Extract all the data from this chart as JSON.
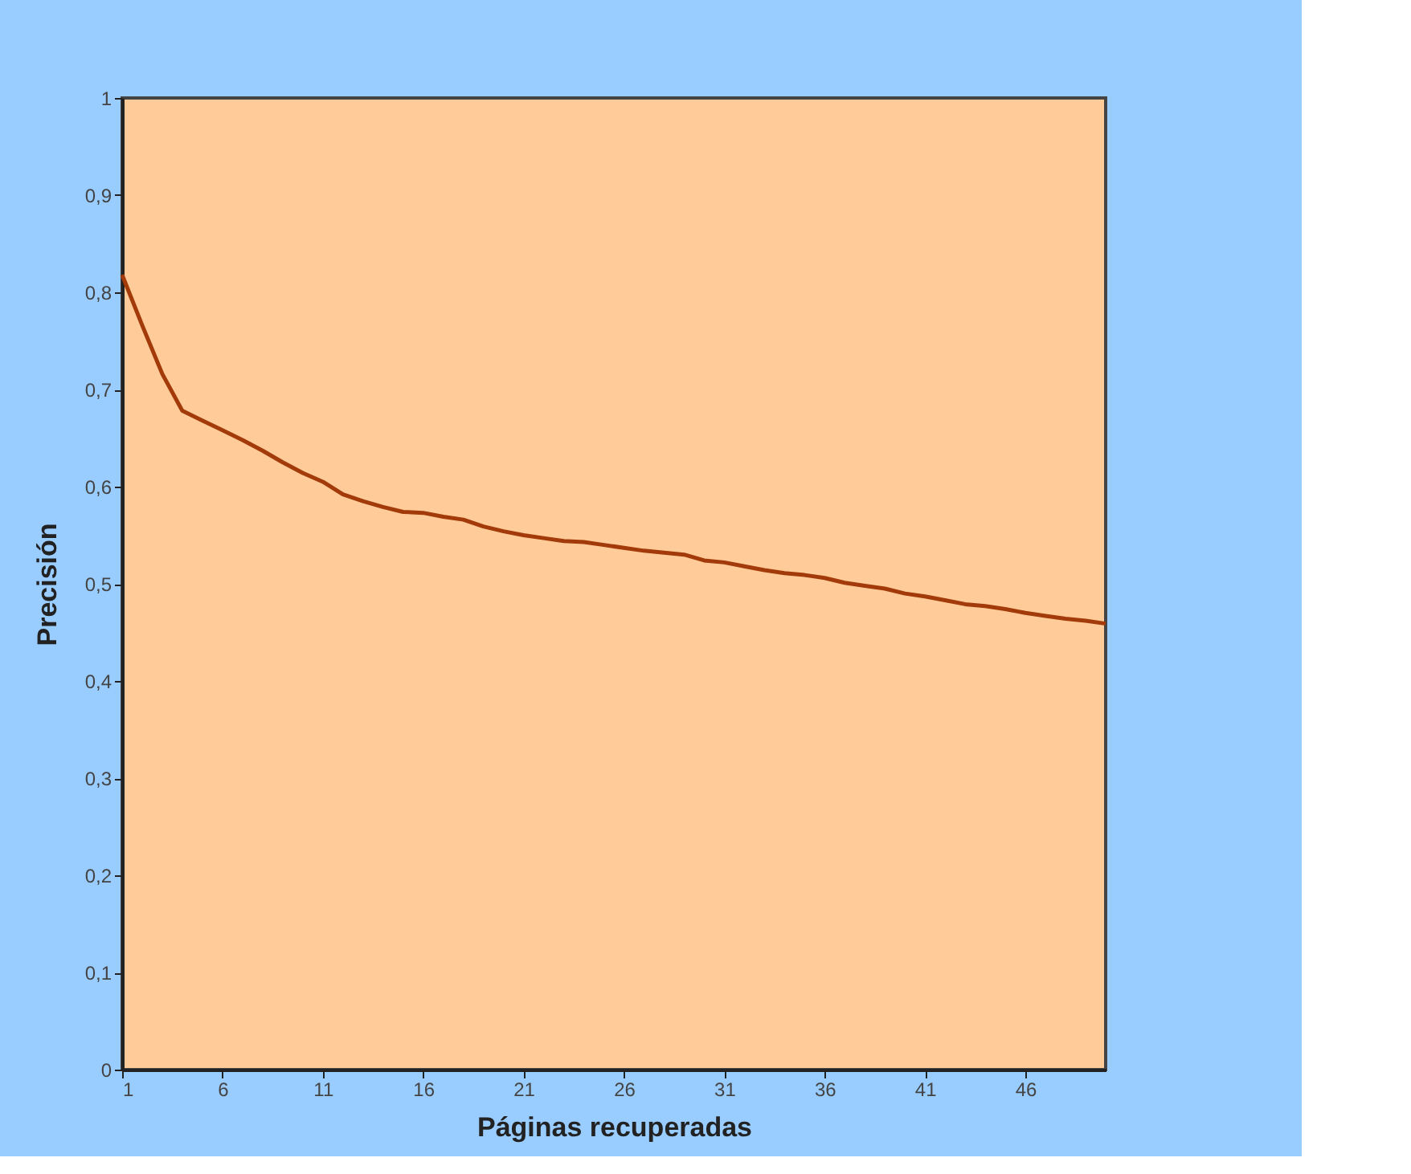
{
  "chart_data": {
    "type": "line",
    "xlabel": "Páginas recuperadas",
    "ylabel": "Precisión",
    "x": [
      1,
      2,
      3,
      4,
      5,
      6,
      7,
      8,
      9,
      10,
      11,
      12,
      13,
      14,
      15,
      16,
      17,
      18,
      19,
      20,
      21,
      22,
      23,
      24,
      25,
      26,
      27,
      28,
      29,
      30,
      31,
      32,
      33,
      34,
      35,
      36,
      37,
      38,
      39,
      40,
      41,
      42,
      43,
      44,
      45,
      46,
      47,
      48,
      49,
      50
    ],
    "series": [
      {
        "color": "#a33a0a",
        "values": [
          0.818,
          0.766,
          0.716,
          0.678,
          0.668,
          0.658,
          0.648,
          0.637,
          0.625,
          0.614,
          0.605,
          0.592,
          0.585,
          0.579,
          0.574,
          0.573,
          0.569,
          0.566,
          0.559,
          0.554,
          0.55,
          0.547,
          0.544,
          0.543,
          0.54,
          0.537,
          0.534,
          0.532,
          0.53,
          0.524,
          0.522,
          0.518,
          0.514,
          0.511,
          0.509,
          0.506,
          0.501,
          0.498,
          0.495,
          0.49,
          0.487,
          0.483,
          0.479,
          0.477,
          0.474,
          0.47,
          0.467,
          0.464,
          0.462,
          0.459
        ]
      }
    ],
    "xlim": [
      1,
      50
    ],
    "xticks": [
      1,
      6,
      11,
      16,
      21,
      26,
      31,
      36,
      41,
      46
    ],
    "ylim": [
      0,
      1
    ],
    "yticks": [
      0,
      {
        "value": 0.1,
        "label": "0,1"
      },
      {
        "value": 0.2,
        "label": "0,2"
      },
      {
        "value": 0.3,
        "label": "0,3"
      },
      {
        "value": 0.4,
        "label": "0,4"
      },
      {
        "value": 0.5,
        "label": "0,5"
      },
      {
        "value": 0.6,
        "label": "0,6"
      },
      {
        "value": 0.7,
        "label": "0,7"
      },
      {
        "value": 0.8,
        "label": "0,8"
      },
      {
        "value": 0.9,
        "label": "0,9"
      },
      1
    ],
    "grid": false,
    "legend": false,
    "marker": "none",
    "line_style": "solid"
  }
}
